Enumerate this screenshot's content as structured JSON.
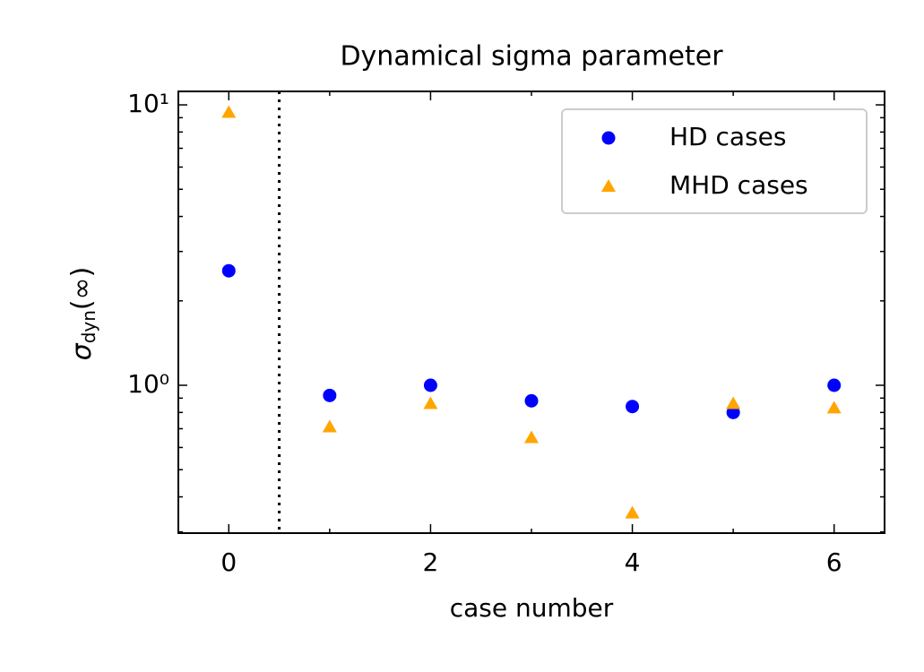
{
  "chart_data": {
    "type": "scatter",
    "title": "Dynamical sigma parameter",
    "xlabel": "case number",
    "ylabel": {
      "symbol": "σ",
      "subscript": "dyn",
      "suffix": "(∞)"
    },
    "x": [
      0,
      1,
      2,
      3,
      4,
      5,
      6
    ],
    "series": [
      {
        "name": "HD cases",
        "color": "#0000ff",
        "marker": "circle",
        "values": [
          2.56,
          0.92,
          1.0,
          0.88,
          0.84,
          0.8,
          1.0
        ]
      },
      {
        "name": "MHD cases",
        "color": "#ffa500",
        "marker": "triangle",
        "values": [
          9.4,
          0.71,
          0.86,
          0.65,
          0.35,
          0.86,
          0.83
        ]
      }
    ],
    "xlim": [
      -0.5,
      6.5
    ],
    "xticks": [
      0,
      2,
      4,
      6
    ],
    "xminor_ticks": [
      1,
      3,
      5
    ],
    "ylim": [
      0.297,
      11.17
    ],
    "ylog": true,
    "yticks": [
      {
        "value": 1,
        "label": "10⁰"
      },
      {
        "value": 10,
        "label": "10¹"
      }
    ],
    "yminor_ticks": [
      0.3,
      0.4,
      0.5,
      0.6,
      0.7,
      0.8,
      0.9,
      2,
      3,
      4,
      5,
      6,
      7,
      8,
      9
    ],
    "vline_x": 0.5,
    "legend": "upper right",
    "grid": false
  }
}
